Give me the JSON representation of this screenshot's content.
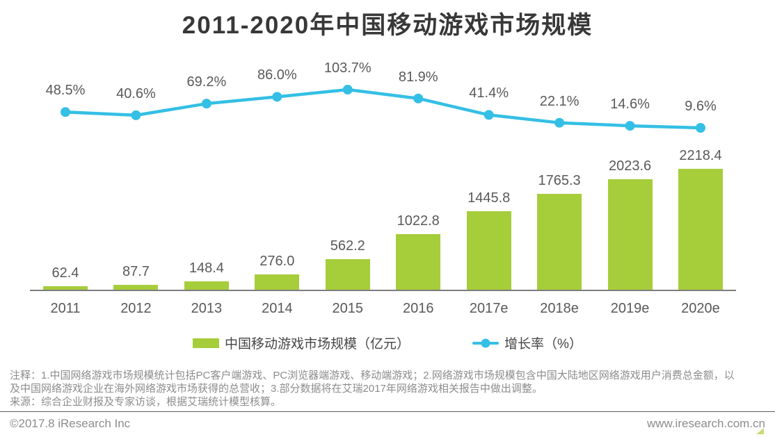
{
  "chart_data": {
    "type": "combo",
    "title": "2011-2020年中国移动游戏市场规模",
    "categories": [
      "2011",
      "2012",
      "2013",
      "2014",
      "2015",
      "2016",
      "2017e",
      "2018e",
      "2019e",
      "2020e"
    ],
    "series": [
      {
        "name": "中国移动游戏市场规模（亿元）",
        "type": "bar",
        "unit": "亿元",
        "color": "#a6cd3a",
        "values": [
          62.4,
          87.7,
          148.4,
          276.0,
          562.2,
          1022.8,
          1445.8,
          1765.3,
          2023.6,
          2218.4
        ]
      },
      {
        "name": "增长率（%）",
        "type": "line",
        "unit": "%",
        "color": "#34bfe5",
        "values": [
          48.5,
          40.6,
          69.2,
          86.0,
          103.7,
          81.9,
          41.4,
          22.1,
          14.6,
          9.6
        ]
      }
    ],
    "legend_position": "bottom",
    "grid": false,
    "value_labels": true
  },
  "notes": {
    "lines": [
      "注释：1.中国网络游戏市场规模统计包括PC客户端游戏、PC浏览器端游戏、移动端游戏；2.网络游戏市场规模包含中国大陆地区网络游戏用户消费总金额，以",
      "及中国网络游戏企业在海外网络游戏市场获得的总营收；3.部分数据将在艾瑞2017年网络游戏相关报告中做出调整。"
    ],
    "source": "来源：综合企业财报及专家访谈，根据艾瑞统计模型核算。"
  },
  "footer": {
    "left": "©2017.8 iResearch Inc",
    "right": "www.iresearch.com.cn"
  },
  "colors": {
    "bar": "#a6cd3a",
    "line": "#34bfe5",
    "data_label": "#595959",
    "title_text": "#383838",
    "note_text": "#8c8c8c",
    "axis": "#7d7d7d"
  }
}
